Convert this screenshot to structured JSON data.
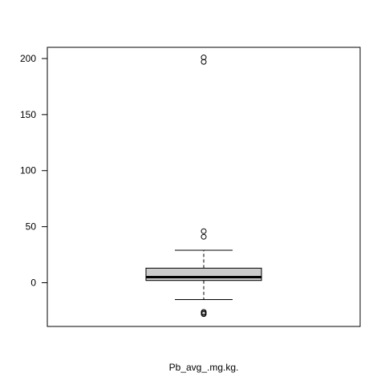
{
  "chart_data": {
    "type": "boxplot",
    "xlabel": "Pb_avg_.mg.kg.",
    "ylabel": "",
    "ylim": [
      -39,
      210
    ],
    "yticks": [
      0,
      50,
      100,
      150,
      200
    ],
    "grid": false,
    "box": {
      "whisker_low": -15,
      "q1": 2,
      "median": 5,
      "q3": 13,
      "whisker_high": 29,
      "fill": "#cccccc"
    },
    "outliers": [
      201,
      197,
      46,
      41,
      -26,
      -27,
      -28
    ]
  }
}
